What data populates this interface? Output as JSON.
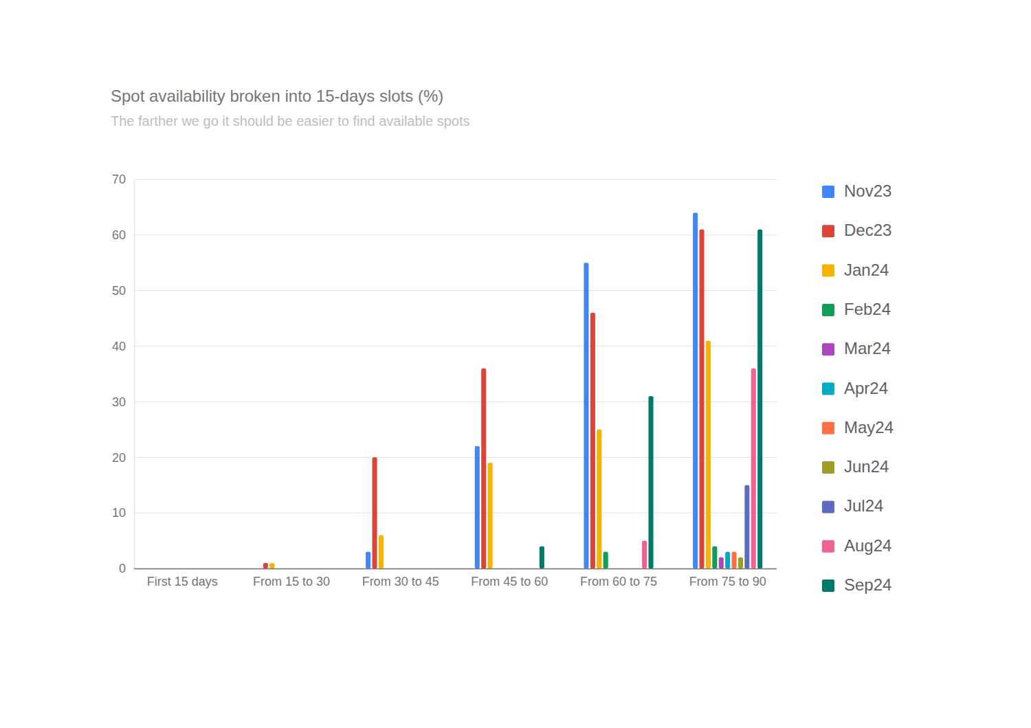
{
  "chart_data": {
    "type": "bar",
    "title": "Spot availability broken into 15-days slots (%)",
    "subtitle": "The farther we go it should be easier to find available spots",
    "categories": [
      "First 15 days",
      "From 15 to 30",
      "From 30 to 45",
      "From 45 to 60",
      "From 60 to 75",
      "From 75 to 90"
    ],
    "series": [
      {
        "name": "Nov23",
        "color": "#4285f4",
        "values": [
          0,
          0,
          3,
          22,
          55,
          64
        ]
      },
      {
        "name": "Dec23",
        "color": "#db4437",
        "values": [
          0,
          1,
          20,
          36,
          46,
          61
        ]
      },
      {
        "name": "Jan24",
        "color": "#f4b400",
        "values": [
          0,
          1,
          6,
          19,
          25,
          41
        ]
      },
      {
        "name": "Feb24",
        "color": "#0f9d58",
        "values": [
          0,
          0,
          0,
          0,
          3,
          4
        ]
      },
      {
        "name": "Mar24",
        "color": "#ab47bc",
        "values": [
          0,
          0,
          0,
          0,
          0,
          2
        ]
      },
      {
        "name": "Apr24",
        "color": "#00acc1",
        "values": [
          0,
          0,
          0,
          0,
          0,
          3
        ]
      },
      {
        "name": "May24",
        "color": "#ff7043",
        "values": [
          0,
          0,
          0,
          0,
          0,
          3
        ]
      },
      {
        "name": "Jun24",
        "color": "#9e9d24",
        "values": [
          0,
          0,
          0,
          0,
          0,
          2
        ]
      },
      {
        "name": "Jul24",
        "color": "#5c6bc0",
        "values": [
          0,
          0,
          0,
          0,
          0,
          15
        ]
      },
      {
        "name": "Aug24",
        "color": "#f06292",
        "values": [
          0,
          0,
          0,
          0,
          5,
          36
        ]
      },
      {
        "name": "Sep24",
        "color": "#00796b",
        "values": [
          0,
          0,
          0,
          4,
          31,
          61
        ]
      }
    ],
    "ylim": [
      0,
      70
    ],
    "yticks": [
      0,
      10,
      20,
      30,
      40,
      50,
      60,
      70
    ],
    "grid": true,
    "legend": "right"
  }
}
